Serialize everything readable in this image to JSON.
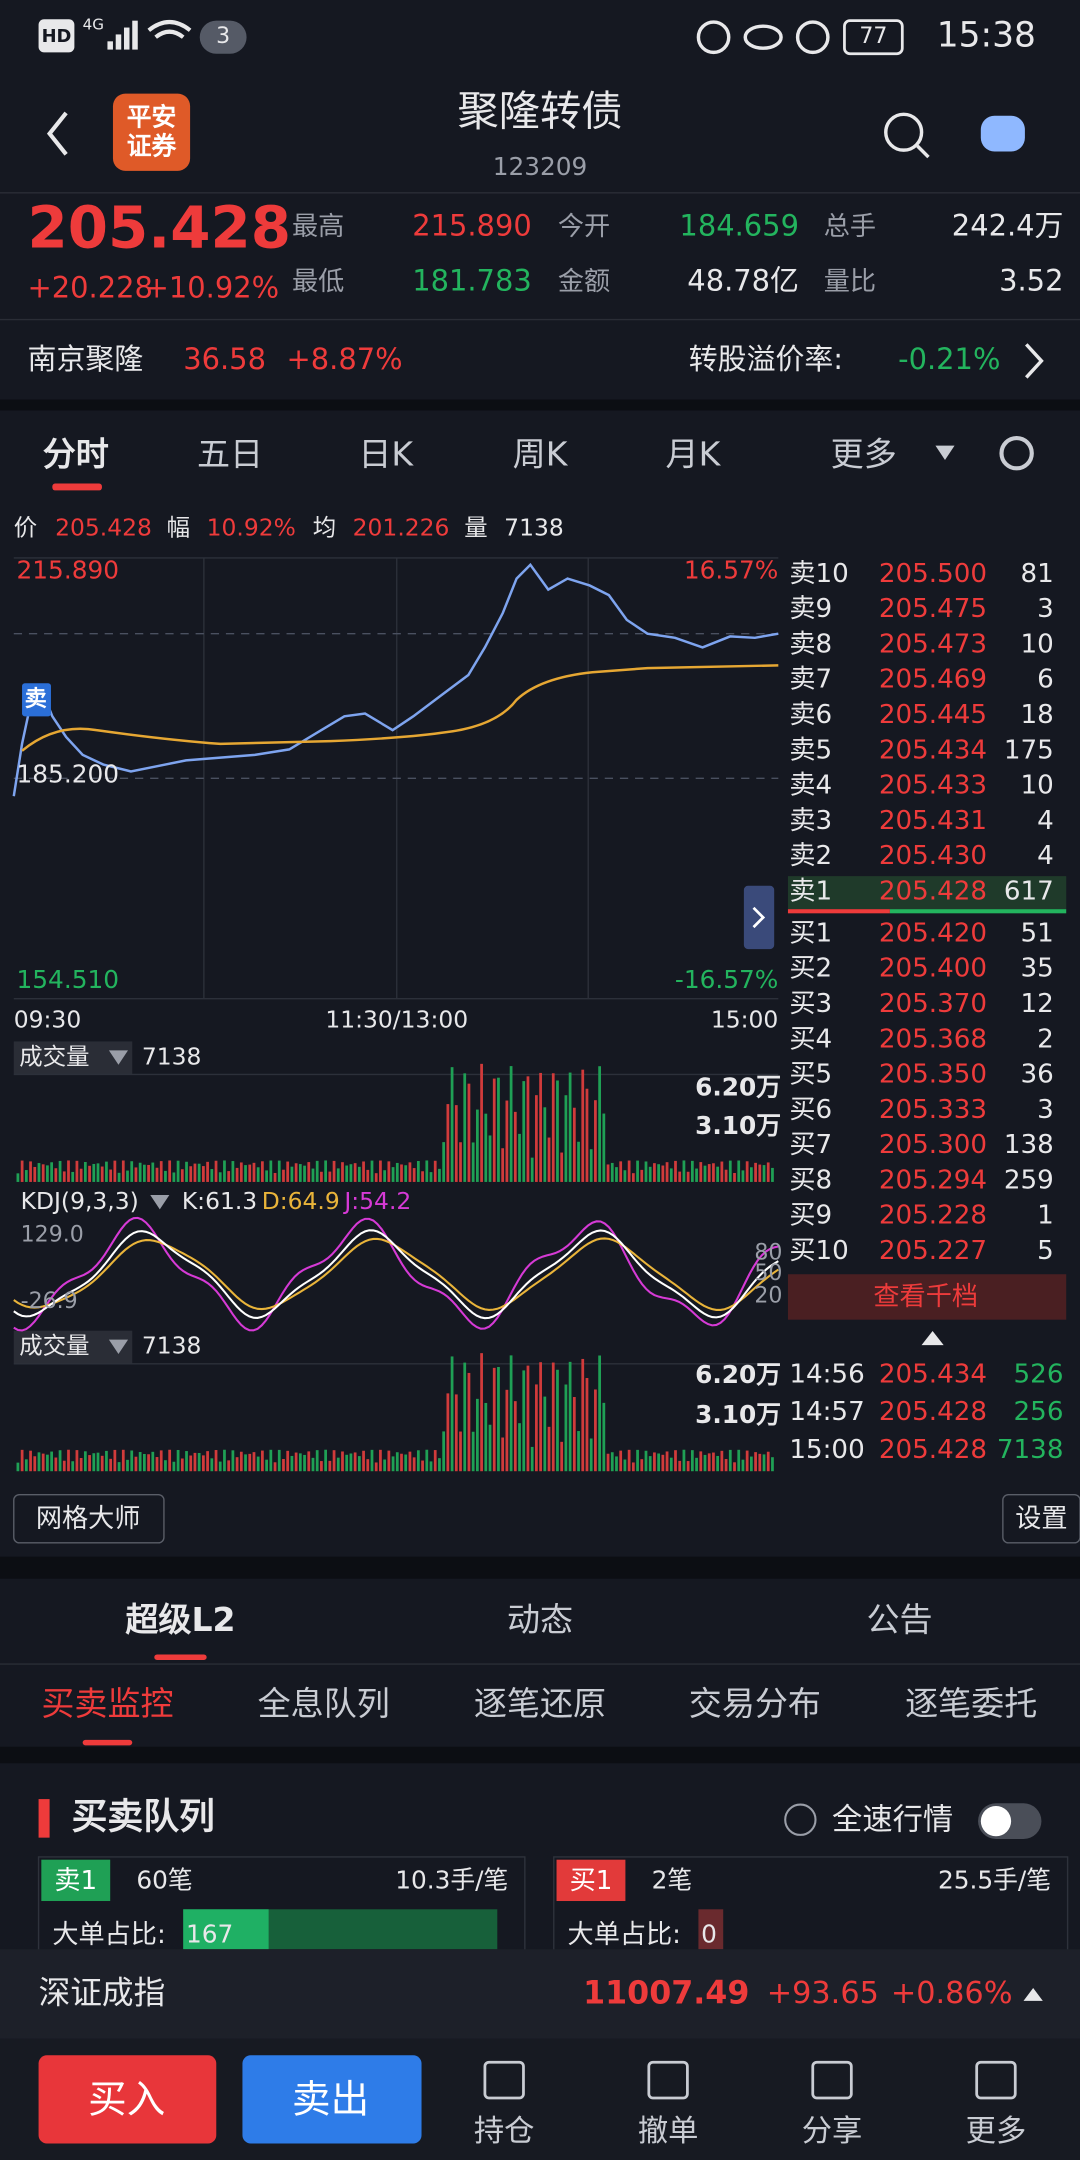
{
  "status": {
    "hd": "HD",
    "network": "4G",
    "sims": "3",
    "battery": "77",
    "time": "15:38"
  },
  "header": {
    "logo_top": "平安",
    "logo_bottom": "证券",
    "title": "聚隆转债",
    "code": "123209"
  },
  "quote": {
    "price": "205.428",
    "change": "+20.228",
    "pct": "+10.92%",
    "stats": [
      {
        "label": "最高",
        "value": "215.890"
      },
      {
        "label": "最低",
        "value": "181.783"
      },
      {
        "label": "今开",
        "value": "184.659"
      },
      {
        "label": "金额",
        "value": "48.78亿"
      },
      {
        "label": "总手",
        "value": "242.4万"
      },
      {
        "label": "量比",
        "value": "3.52"
      }
    ]
  },
  "stock": {
    "name": "南京聚隆",
    "price": "36.58",
    "pct": "+8.87%",
    "premium_label": "转股溢价率:",
    "premium": "-0.21%"
  },
  "tabs": [
    "分时",
    "五日",
    "日K",
    "周K",
    "月K",
    "更多"
  ],
  "info": {
    "price_label": "价",
    "price": "205.428",
    "range_label": "幅",
    "range": "10.92%",
    "avg_label": "均",
    "avg": "201.226",
    "vol_label": "量",
    "vol": "7138"
  },
  "chart": {
    "top": "215.890",
    "top_pct": "16.57%",
    "mid": "185.200",
    "bottom": "154.510",
    "bottom_pct": "-16.57%",
    "times": [
      "09:30",
      "11:30/13:00",
      "15:00"
    ],
    "sell_tag": "卖"
  },
  "volume": {
    "label": "成交量",
    "value": "7138",
    "ticks": [
      "6.20万",
      "3.10万"
    ]
  },
  "kdj": {
    "label": "KDJ(9,3,3)",
    "k": "K:61.3",
    "d": "D:64.9",
    "j": "J:54.2",
    "left_top": "129.0",
    "left_bottom": "-26.9",
    "ticks": [
      "80",
      "50",
      "20"
    ]
  },
  "volume2": {
    "label": "成交量",
    "value": "7138",
    "ticks": [
      "6.20万",
      "3.10万"
    ]
  },
  "orderbook": {
    "asks": [
      [
        "卖10",
        "205.500",
        "81"
      ],
      [
        "卖9",
        "205.475",
        "3"
      ],
      [
        "卖8",
        "205.473",
        "10"
      ],
      [
        "卖7",
        "205.469",
        "6"
      ],
      [
        "卖6",
        "205.445",
        "18"
      ],
      [
        "卖5",
        "205.434",
        "175"
      ],
      [
        "卖4",
        "205.433",
        "10"
      ],
      [
        "卖3",
        "205.431",
        "4"
      ],
      [
        "卖2",
        "205.430",
        "4"
      ],
      [
        "卖1",
        "205.428",
        "617"
      ]
    ],
    "bids": [
      [
        "买1",
        "205.420",
        "51"
      ],
      [
        "买2",
        "205.400",
        "35"
      ],
      [
        "买3",
        "205.370",
        "12"
      ],
      [
        "买4",
        "205.368",
        "2"
      ],
      [
        "买5",
        "205.350",
        "36"
      ],
      [
        "买6",
        "205.333",
        "3"
      ],
      [
        "买7",
        "205.300",
        "138"
      ],
      [
        "买8",
        "205.294",
        "259"
      ],
      [
        "买9",
        "205.228",
        "1"
      ],
      [
        "买10",
        "205.227",
        "5"
      ]
    ],
    "more": "查看千档",
    "trades": [
      [
        "14:56",
        "205.434",
        "526"
      ],
      [
        "14:57",
        "205.428",
        "256"
      ],
      [
        "15:00",
        "205.428",
        "7138"
      ]
    ]
  },
  "buttons": {
    "grid": "网格大师",
    "settings": "设置"
  },
  "section_tabs": [
    "超级L2",
    "动态",
    "公告"
  ],
  "sub_tabs": [
    "买卖监控",
    "全息队列",
    "逐笔还原",
    "交易分布",
    "逐笔委托"
  ],
  "queue": {
    "title": "买卖队列",
    "toggle_label": "全速行情",
    "left": {
      "tag": "卖1",
      "count": "60笔",
      "avg": "10.3手/笔",
      "ratio_label": "大单占比:",
      "ratio": "167"
    },
    "right": {
      "tag": "买1",
      "count": "2笔",
      "avg": "25.5手/笔",
      "ratio_label": "大单占比:",
      "ratio": "0"
    }
  },
  "index": {
    "name": "深证成指",
    "value": "11007.49",
    "change": "+93.65",
    "pct": "+0.86%"
  },
  "bottom": {
    "buy": "买入",
    "sell": "卖出",
    "nav": [
      "持仓",
      "撤单",
      "分享",
      "更多"
    ]
  }
}
